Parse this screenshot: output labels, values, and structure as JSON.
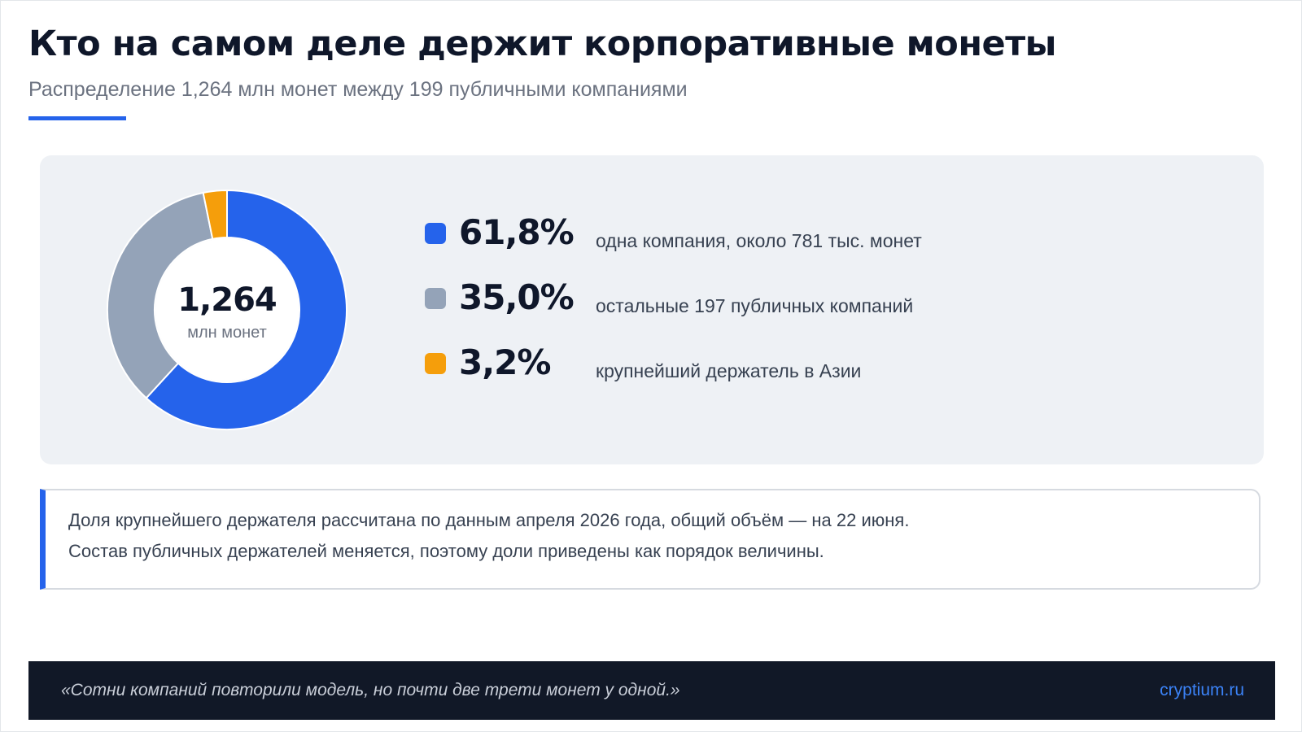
{
  "header": {
    "title": "Кто на самом деле держит корпоративные монеты",
    "subtitle": "Распределение 1,264 млн монет между 199 публичными компаниями"
  },
  "chart_data": {
    "type": "pie",
    "center_value": "1,264",
    "center_unit": "млн монет",
    "slices": [
      {
        "percent_label": "61,8%",
        "value": 61.8,
        "label": "одна компания, около 781 тыс. монет",
        "color": "#2563eb"
      },
      {
        "percent_label": "35,0%",
        "value": 35.0,
        "label": "остальные 197 публичных компаний",
        "color": "#94a3b8"
      },
      {
        "percent_label": "3,2%",
        "value": 3.2,
        "label": "крупнейший держатель в Азии",
        "color": "#f59e0b"
      }
    ]
  },
  "note": {
    "line1": "Доля крупнейшего держателя рассчитана по данным апреля 2026 года, общий объём — на 22 июня.",
    "line2": "Состав публичных держателей меняется, поэтому доли приведены как порядок величины."
  },
  "footer": {
    "quote": "«Сотни компаний повторили модель, но почти две трети монет у одной.»",
    "site": "cryptium.ru"
  },
  "colors": {
    "accent": "#2563eb",
    "panel_bg": "#eef1f5",
    "footer_bg": "#111827"
  }
}
